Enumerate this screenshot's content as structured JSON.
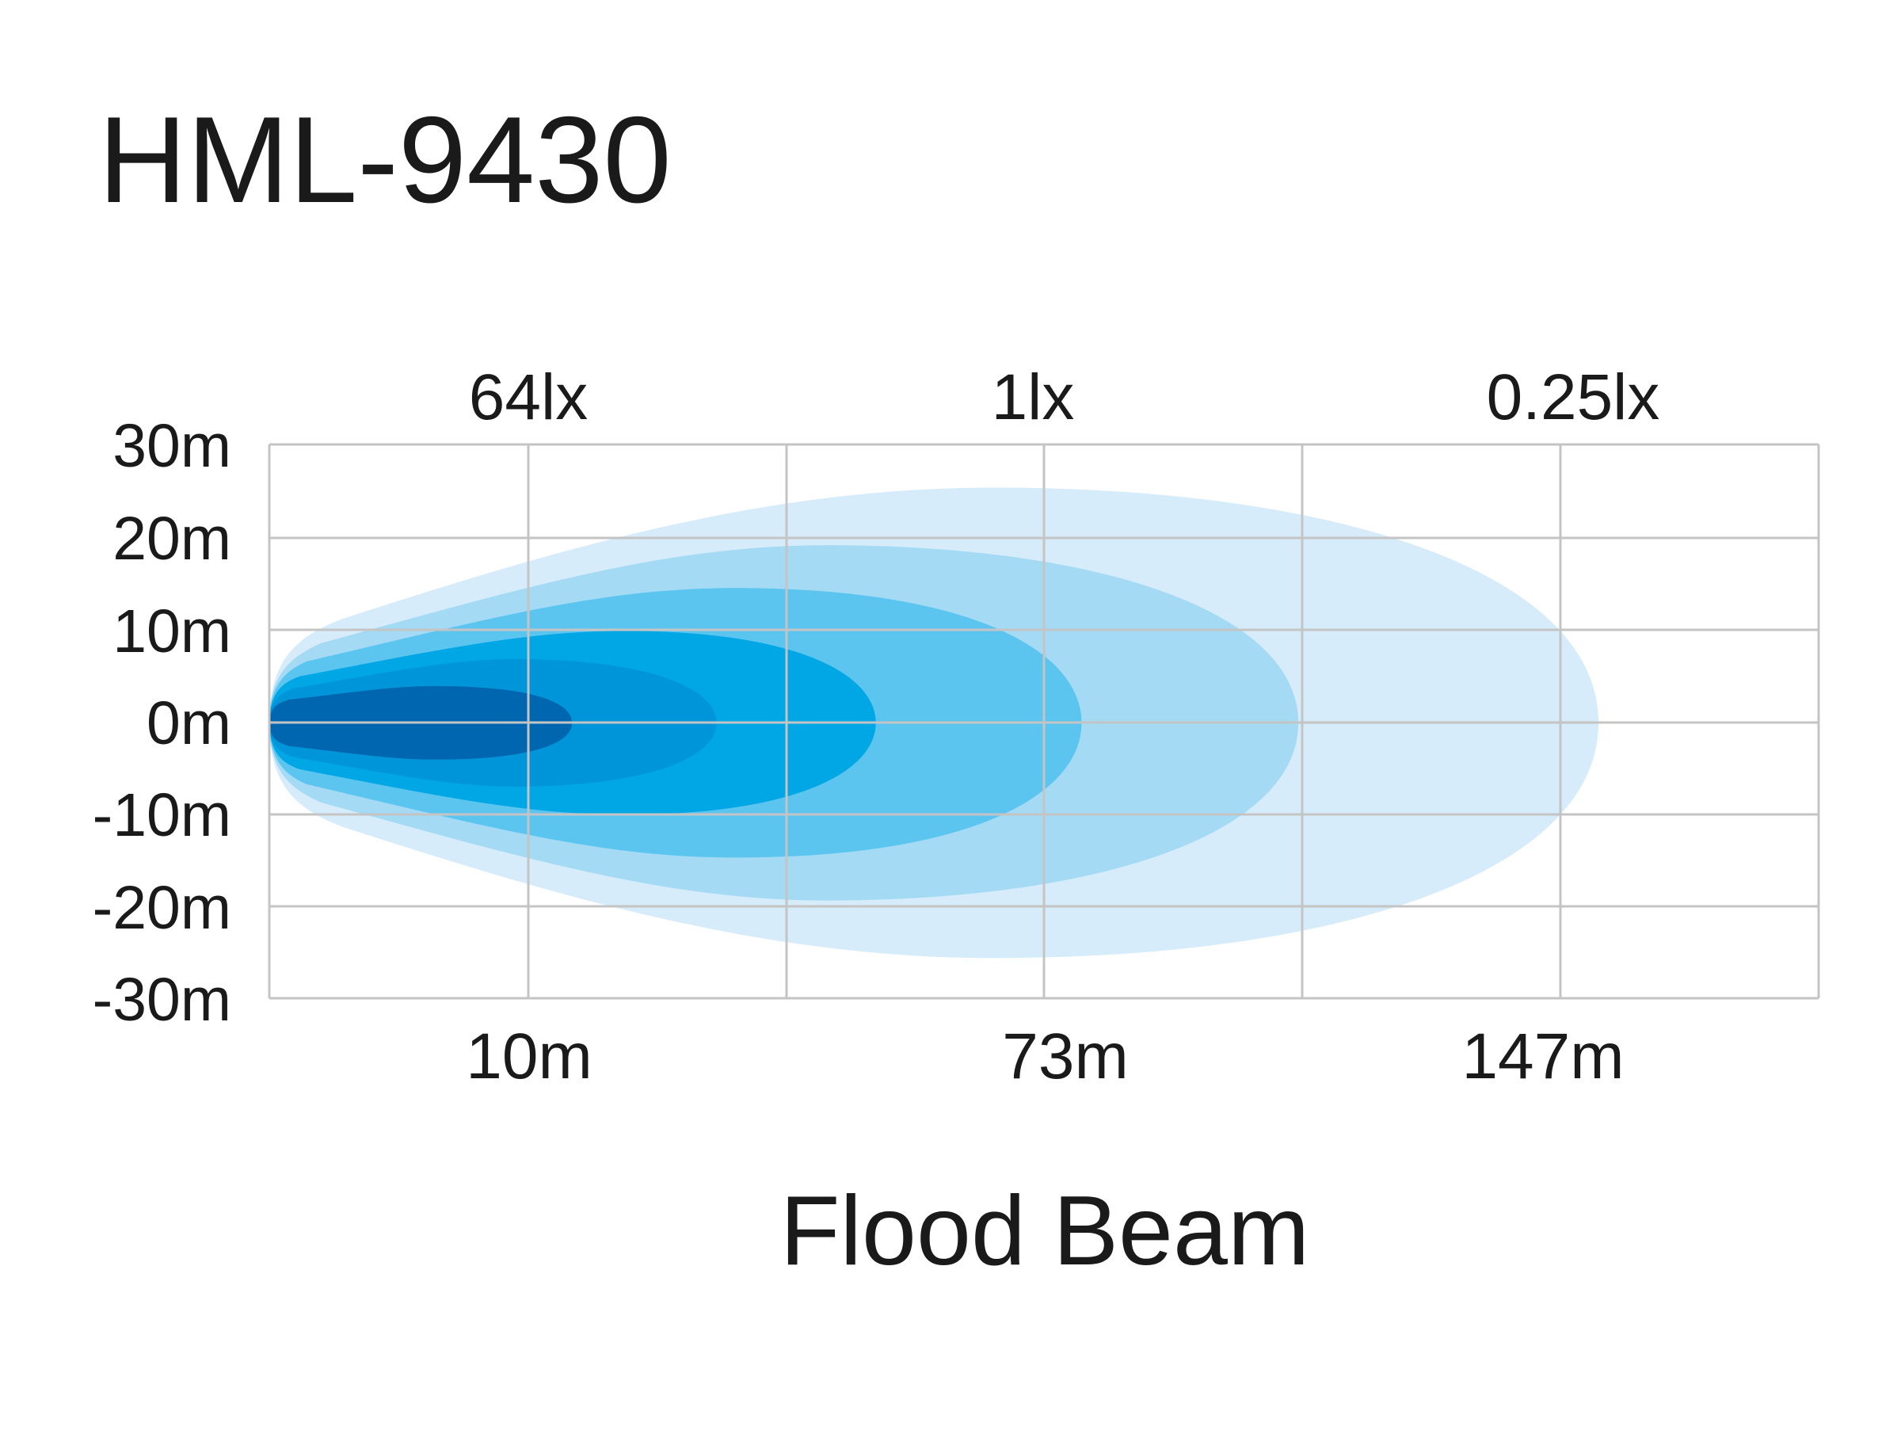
{
  "title": "HML-9430",
  "y_labels": [
    "30m",
    "20m",
    "10m",
    "0m",
    "-10m",
    "-20m",
    "-30m"
  ],
  "lux_labels": [
    "64lx",
    "1lx",
    "0.25lx"
  ],
  "distance_labels": [
    "10m",
    "73m",
    "147m"
  ],
  "caption": "Flood Beam"
}
